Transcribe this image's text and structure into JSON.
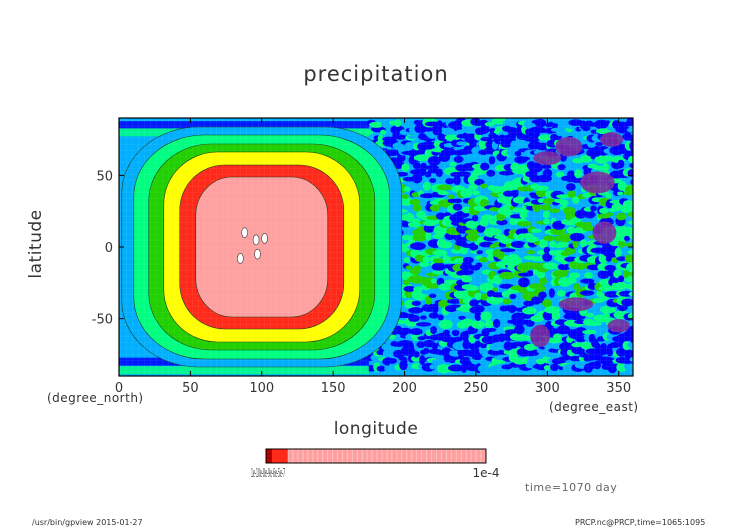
{
  "chart_data": {
    "type": "heatmap",
    "title": "precipitation",
    "xlabel": "longitude",
    "ylabel": "latitude",
    "x_unit": "(degree_east)",
    "y_unit": "(degree_north)",
    "xlim": [
      0,
      360
    ],
    "ylim": [
      -90,
      90
    ],
    "x_ticks": [
      0,
      50,
      100,
      150,
      200,
      250,
      300,
      350
    ],
    "y_ticks": [
      -50,
      0,
      50
    ],
    "colorbar": {
      "label_max": "1e-4",
      "label_min_cluster": "1e-10e-8e-9e-6e-5e-7",
      "colors": [
        "#b00000",
        "#ff2a1a",
        "#ffa0a0"
      ]
    },
    "palette": {
      "very_low": "#0000ff",
      "low": "#00b0ff",
      "medium_low": "#00ff80",
      "medium": "#20d000",
      "medium_high": "#ffff00",
      "high": "#ff2a1a",
      "very_high": "#ffa0a0",
      "extreme": "#ffffff",
      "deep_low": "#7a2ba0"
    },
    "features": [
      {
        "name": "continental maximum",
        "center_lon": 100,
        "center_lat": 0,
        "level": "very_high"
      },
      {
        "name": "dry region",
        "lon_range": [
          280,
          360
        ],
        "lat_range": [
          -60,
          60
        ],
        "level": "deep_low"
      }
    ]
  },
  "annotations": {
    "time_label": "time=1070 day",
    "footer_left": "/usr/bin/gpview  2015-01-27",
    "footer_right": "PRCP.nc@PRCP,time=1065:1095"
  }
}
